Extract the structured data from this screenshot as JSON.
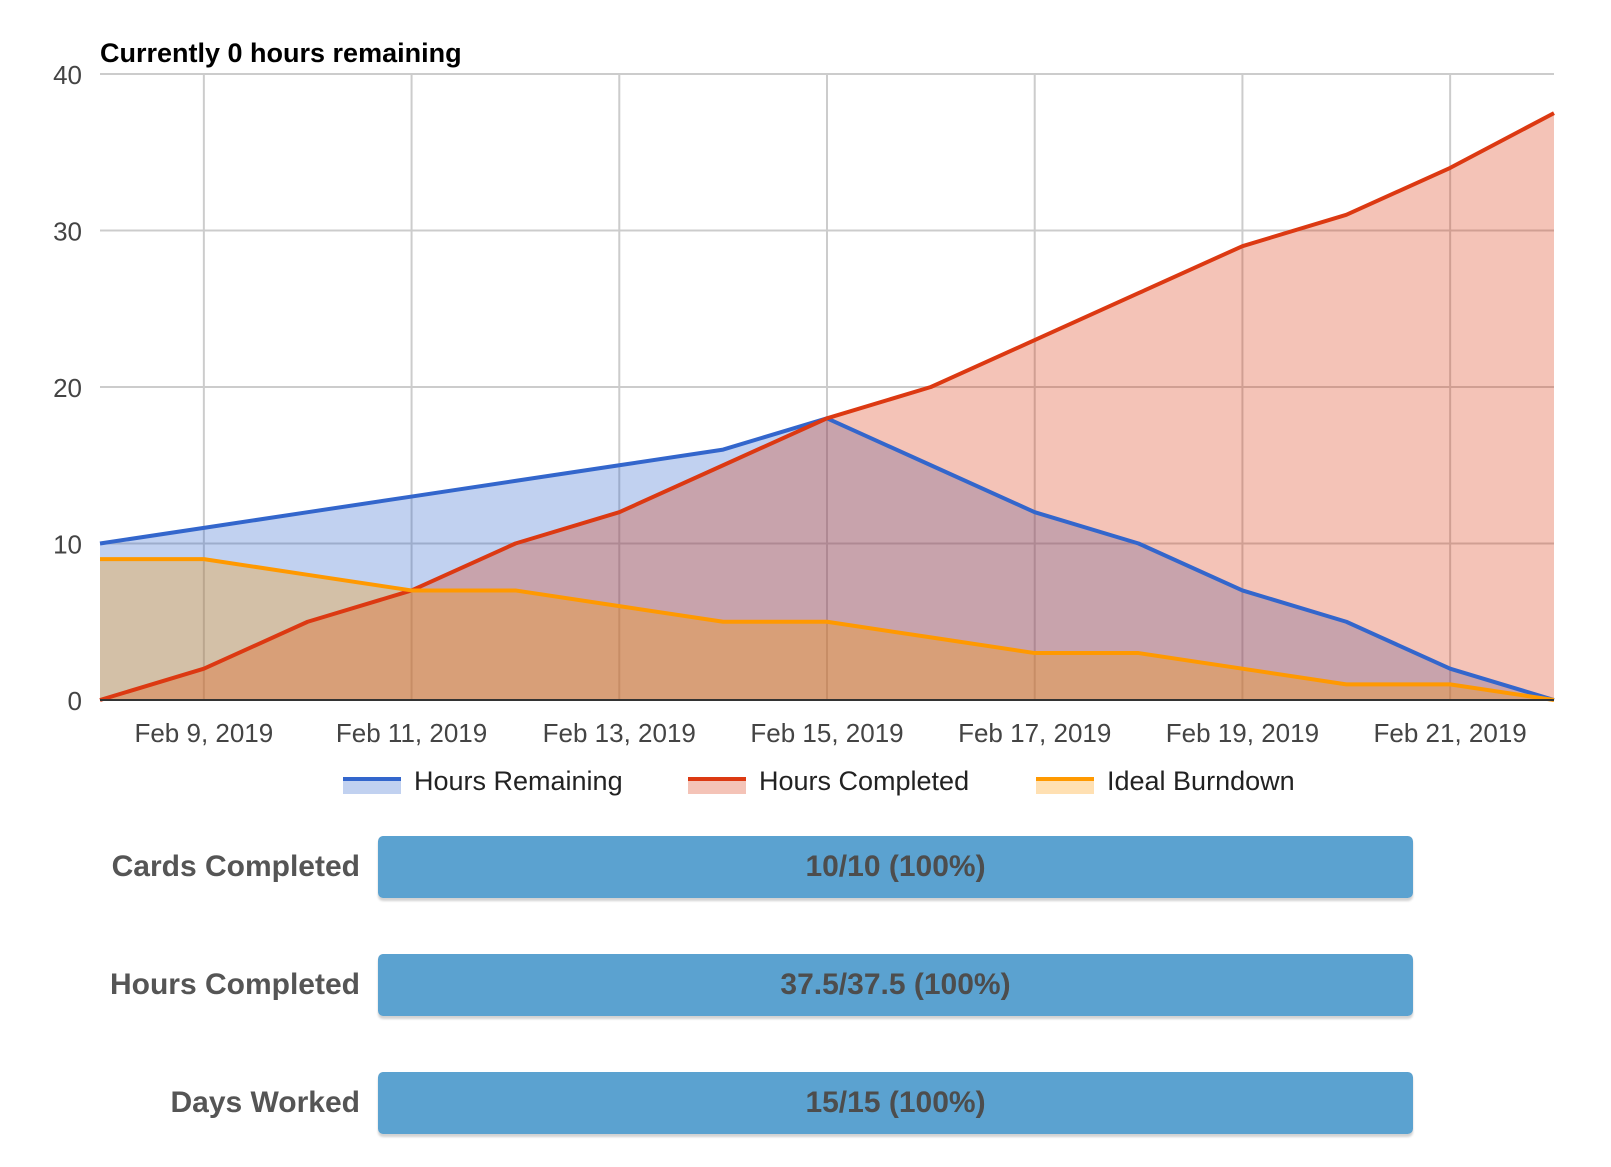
{
  "colors": {
    "remaining": "#3366cc",
    "completed": "#dc3912",
    "ideal": "#ff9900",
    "progress": "#5ba2d0"
  },
  "chart_data": {
    "type": "area",
    "title": "Currently 0 hours remaining",
    "xlabel": "",
    "ylabel": "",
    "x": [
      "2019-02-08",
      "2019-02-09",
      "2019-02-10",
      "2019-02-11",
      "2019-02-12",
      "2019-02-13",
      "2019-02-14",
      "2019-02-15",
      "2019-02-16",
      "2019-02-17",
      "2019-02-18",
      "2019-02-19",
      "2019-02-20",
      "2019-02-21",
      "2019-02-22"
    ],
    "x_tick_labels": [
      "Feb 9, 2019",
      "Feb 11, 2019",
      "Feb 13, 2019",
      "Feb 15, 2019",
      "Feb 17, 2019",
      "Feb 19, 2019",
      "Feb 21, 2019"
    ],
    "x_tick_dates": [
      "2019-02-09",
      "2019-02-11",
      "2019-02-13",
      "2019-02-15",
      "2019-02-17",
      "2019-02-19",
      "2019-02-21"
    ],
    "ylim": [
      0,
      40
    ],
    "y_ticks": [
      0,
      10,
      20,
      30,
      40
    ],
    "grid": true,
    "legend_position": "bottom",
    "series": [
      {
        "name": "Hours Remaining",
        "values": [
          10,
          11,
          12,
          13,
          14,
          15,
          16,
          18,
          15,
          12,
          10,
          7,
          5,
          2,
          0
        ]
      },
      {
        "name": "Hours Completed",
        "values": [
          0,
          2,
          5,
          7,
          10,
          12,
          15,
          18,
          20,
          23,
          26,
          29,
          31,
          34,
          37.5
        ]
      },
      {
        "name": "Ideal Burndown",
        "values": [
          9,
          9,
          8,
          7,
          7,
          6,
          5,
          5,
          4,
          3,
          3,
          2,
          1,
          1,
          0
        ]
      }
    ]
  },
  "stats": [
    {
      "label": "Cards Completed",
      "value": "10/10 (100%)",
      "fraction": 1.0
    },
    {
      "label": "Hours Completed",
      "value": "37.5/37.5 (100%)",
      "fraction": 1.0
    },
    {
      "label": "Days Worked",
      "value": "15/15 (100%)",
      "fraction": 1.0
    }
  ]
}
